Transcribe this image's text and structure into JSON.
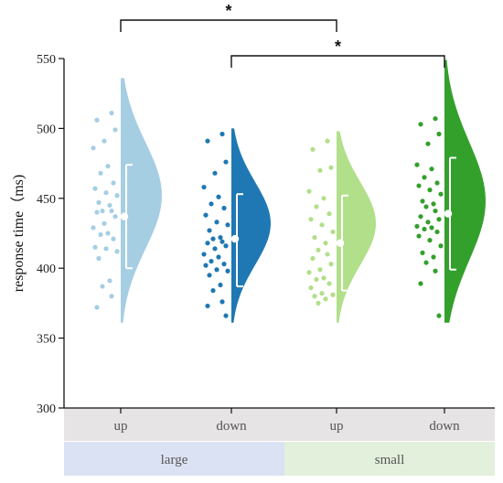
{
  "chart_data": {
    "type": "half-violin-raincloud",
    "ylabel": "response time（ms)",
    "ylim": [
      300,
      550
    ],
    "yticks": [
      300,
      350,
      400,
      450,
      500,
      550
    ],
    "categories": [
      "up",
      "down",
      "up",
      "down"
    ],
    "groups": [
      {
        "label": "large",
        "color": "#dbe2f3",
        "span": [
          0,
          1
        ]
      },
      {
        "label": "small",
        "color": "#e3f0dc",
        "span": [
          2,
          3
        ]
      }
    ],
    "category_band_color": "#e6e4e5",
    "series": [
      {
        "color": "#a6cee3",
        "range": [
          361,
          536
        ],
        "density_peak": 452,
        "mean": 437,
        "error": [
          400,
          474
        ],
        "points": [
          511,
          506,
          499,
          491,
          486,
          473,
          468,
          461,
          457,
          454,
          452,
          447,
          445,
          441,
          441,
          440,
          437,
          432,
          429,
          425,
          424,
          421,
          415,
          414,
          412,
          407,
          391,
          387,
          380,
          372
        ]
      },
      {
        "color": "#1f78b4",
        "range": [
          361,
          500
        ],
        "density_peak": 432,
        "mean": 421,
        "error": [
          387,
          453
        ],
        "points": [
          496,
          491,
          476,
          468,
          458,
          451,
          446,
          443,
          438,
          433,
          431,
          427,
          422,
          421,
          419,
          418,
          416,
          414,
          410,
          408,
          405,
          403,
          402,
          399,
          398,
          395,
          388,
          384,
          376,
          373,
          366
        ]
      },
      {
        "color": "#b2df8a",
        "range": [
          361,
          498
        ],
        "density_peak": 432,
        "mean": 418,
        "error": [
          384,
          452
        ],
        "points": [
          491,
          485,
          472,
          470,
          455,
          450,
          444,
          439,
          435,
          431,
          426,
          422,
          418,
          413,
          410,
          407,
          403,
          399,
          397,
          393,
          392,
          389,
          386,
          382,
          381,
          380,
          378,
          375
        ]
      },
      {
        "color": "#33a02c",
        "range": [
          361,
          549
        ],
        "density_peak": 448,
        "mean": 439,
        "error": [
          399,
          479
        ],
        "points": [
          507,
          503,
          496,
          489,
          474,
          471,
          465,
          461,
          459,
          456,
          453,
          448,
          446,
          444,
          441,
          437,
          435,
          433,
          430,
          429,
          428,
          426,
          423,
          420,
          416,
          411,
          408,
          404,
          398,
          389,
          366
        ]
      }
    ],
    "significance": [
      {
        "from": 0,
        "to": 2,
        "label": "*"
      },
      {
        "from": 1,
        "to": 3,
        "label": "*"
      }
    ]
  }
}
